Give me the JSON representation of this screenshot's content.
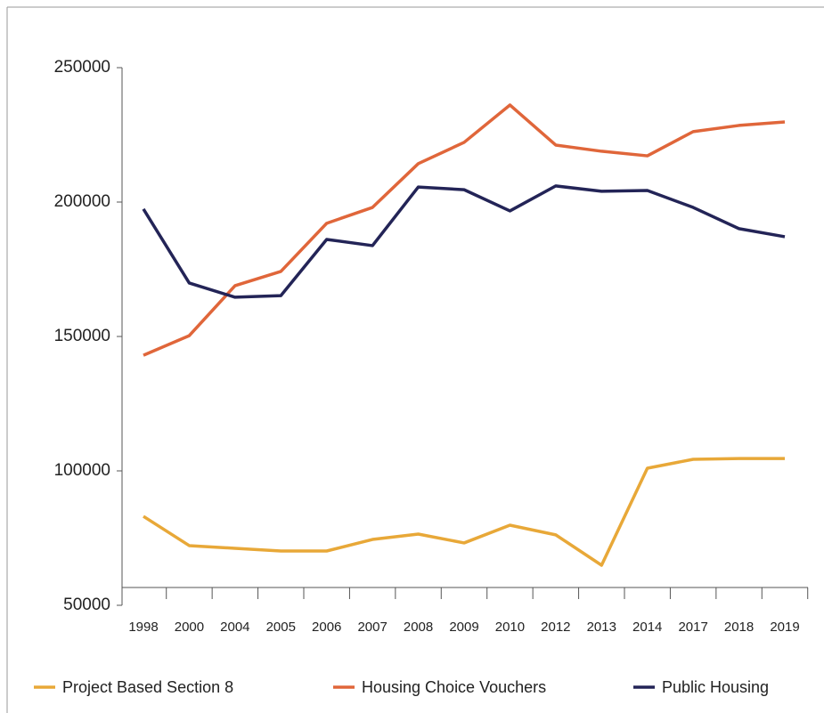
{
  "chart_data": {
    "type": "line",
    "categories": [
      "1998",
      "2000",
      "2004",
      "2005",
      "2006",
      "2007",
      "2008",
      "2009",
      "2010",
      "2012",
      "2013",
      "2014",
      "2017",
      "2018",
      "2019"
    ],
    "series": [
      {
        "name": "Project Based Section 8",
        "color": "#e8a838",
        "values": [
          83100,
          72200,
          71200,
          70200,
          70200,
          74500,
          76500,
          73200,
          79800,
          76200,
          64900,
          101000,
          104300,
          104600,
          104600
        ]
      },
      {
        "name": "Housing Choice Vouchers",
        "color": "#e0663a",
        "values": [
          143000,
          150300,
          168900,
          174200,
          192100,
          198000,
          214300,
          222200,
          236100,
          221200,
          218900,
          217200,
          226200,
          228500,
          229800
        ]
      },
      {
        "name": "Public Housing",
        "color": "#232457",
        "values": [
          197400,
          169900,
          164600,
          165200,
          186100,
          183800,
          205600,
          204600,
          196700,
          206000,
          204000,
          204300,
          198000,
          190100,
          187100
        ]
      }
    ],
    "ylim": [
      50000,
      250000
    ],
    "yticks": [
      50000,
      100000,
      150000,
      200000,
      250000
    ]
  }
}
